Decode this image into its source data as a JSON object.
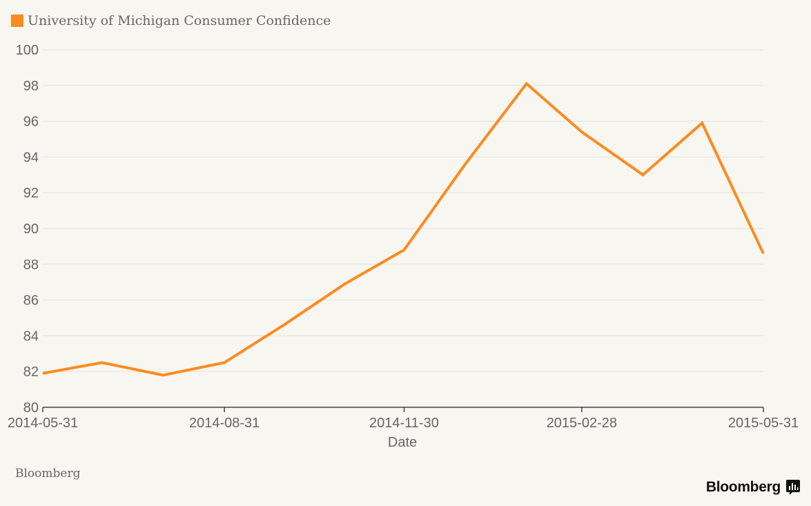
{
  "colors": {
    "line": "#fa8b20",
    "grid": "#e4e2dc",
    "axis": "#444444",
    "text": "#666666",
    "background": "#f8f6f0"
  },
  "legend": {
    "label": "University of Michigan Consumer Confidence"
  },
  "footer": {
    "source": "Bloomberg",
    "brand": "Bloomberg",
    "brand_icon": "bloomberg-chart-icon"
  },
  "chart_data": {
    "type": "line",
    "title": "",
    "xlabel": "Date",
    "ylabel": "",
    "ylim": [
      80,
      100
    ],
    "yticks": [
      "80",
      "82",
      "84",
      "86",
      "88",
      "90",
      "92",
      "94",
      "96",
      "98",
      "100"
    ],
    "xticks": [
      "2014-05-31",
      "2014-08-31",
      "2014-11-30",
      "2015-02-28",
      "2015-05-31"
    ],
    "grid": true,
    "legend_position": "top-left",
    "x": [
      "2014-05-31",
      "2014-06-30",
      "2014-07-31",
      "2014-08-31",
      "2014-09-30",
      "2014-10-31",
      "2014-11-30",
      "2014-12-31",
      "2015-01-31",
      "2015-02-28",
      "2015-03-31",
      "2015-04-30",
      "2015-05-31"
    ],
    "series": [
      {
        "name": "University of Michigan Consumer Confidence",
        "values": [
          81.9,
          82.5,
          81.8,
          82.5,
          84.6,
          86.9,
          88.8,
          93.6,
          98.1,
          95.4,
          93.0,
          95.9,
          88.6
        ]
      }
    ]
  }
}
